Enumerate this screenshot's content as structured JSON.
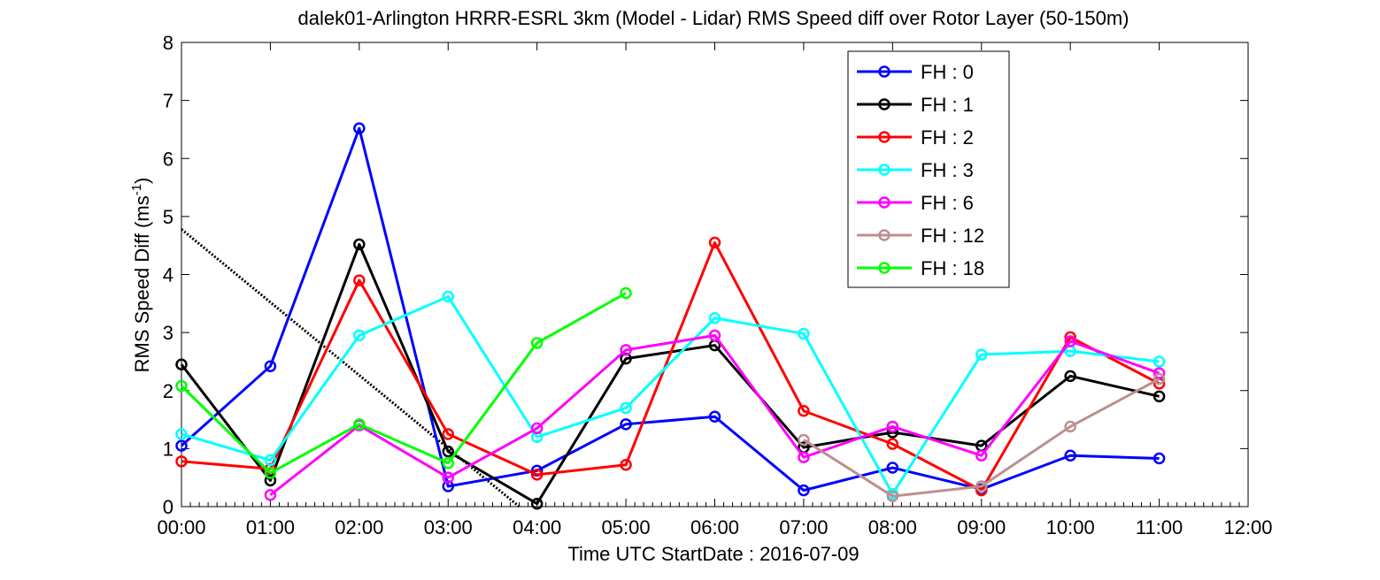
{
  "chart_data": {
    "type": "line",
    "title": "dalek01-Arlington HRRR-ESRL 3km (Model - Lidar) RMS Speed diff over Rotor Layer (50-150m)",
    "xlabel": "Time UTC    StartDate : 2016-07-09",
    "ylabel_main": "RMS Speed Diff (ms",
    "ylabel_sup": "-1",
    "ylabel_close": ")",
    "x_ticks": [
      "00:00",
      "01:00",
      "02:00",
      "03:00",
      "04:00",
      "05:00",
      "06:00",
      "07:00",
      "08:00",
      "09:00",
      "10:00",
      "11:00",
      "12:00"
    ],
    "y_ticks": [
      "0",
      "1",
      "2",
      "3",
      "4",
      "5",
      "6",
      "7",
      "8"
    ],
    "xlim_hours": [
      0,
      12
    ],
    "ylim": [
      0,
      8
    ],
    "legend_position": "top-right",
    "series": [
      {
        "name": "FH : 0",
        "color": "#0000ff",
        "points": [
          [
            0,
            1.05
          ],
          [
            1,
            2.42
          ],
          [
            2,
            6.52
          ],
          [
            3,
            0.35
          ],
          [
            4,
            0.62
          ],
          [
            5,
            1.42
          ],
          [
            6,
            1.55
          ],
          [
            7,
            0.28
          ],
          [
            8,
            0.67
          ],
          [
            9,
            0.3
          ],
          [
            10,
            0.88
          ],
          [
            11,
            0.83
          ]
        ]
      },
      {
        "name": "FH : 1",
        "color": "#000000",
        "points": [
          [
            0,
            2.45
          ],
          [
            1,
            0.45
          ],
          [
            2,
            4.52
          ],
          [
            3,
            0.95
          ],
          [
            4,
            0.05
          ],
          [
            5,
            2.55
          ],
          [
            6,
            2.78
          ],
          [
            7,
            1.02
          ],
          [
            8,
            1.28
          ],
          [
            9,
            1.05
          ],
          [
            10,
            2.25
          ],
          [
            11,
            1.9
          ]
        ]
      },
      {
        "name": "FH : 2",
        "color": "#ff0000",
        "points": [
          [
            0,
            0.78
          ],
          [
            1,
            0.65
          ],
          [
            2,
            3.9
          ],
          [
            3,
            1.25
          ],
          [
            4,
            0.55
          ],
          [
            5,
            0.72
          ],
          [
            6,
            4.55
          ],
          [
            7,
            1.65
          ],
          [
            8,
            1.08
          ],
          [
            9,
            0.28
          ],
          [
            10,
            2.92
          ],
          [
            11,
            2.12
          ]
        ]
      },
      {
        "name": "FH : 3",
        "color": "#00ffff",
        "points": [
          [
            0,
            1.25
          ],
          [
            1,
            0.8
          ],
          [
            2,
            2.95
          ],
          [
            3,
            3.62
          ],
          [
            4,
            1.2
          ],
          [
            5,
            1.7
          ],
          [
            6,
            3.25
          ],
          [
            7,
            2.98
          ],
          [
            8,
            0.22
          ],
          [
            9,
            2.62
          ],
          [
            10,
            2.68
          ],
          [
            11,
            2.5
          ]
        ]
      },
      {
        "name": "FH : 6",
        "color": "#ff00ff",
        "points": [
          [
            1,
            0.2
          ],
          [
            2,
            1.4
          ],
          [
            3,
            0.5
          ],
          [
            4,
            1.35
          ],
          [
            5,
            2.7
          ],
          [
            6,
            2.95
          ],
          [
            7,
            0.85
          ],
          [
            8,
            1.38
          ],
          [
            9,
            0.88
          ],
          [
            10,
            2.85
          ],
          [
            11,
            2.3
          ]
        ]
      },
      {
        "name": "FH : 12",
        "color": "#bc8f8f",
        "points": [
          [
            7,
            1.15
          ],
          [
            8,
            0.18
          ],
          [
            9,
            0.35
          ],
          [
            10,
            1.38
          ],
          [
            11,
            2.2
          ]
        ]
      },
      {
        "name": "FH : 18",
        "color": "#00ff00",
        "points": [
          [
            0,
            2.08
          ],
          [
            1,
            0.58
          ],
          [
            2,
            1.42
          ],
          [
            3,
            0.75
          ],
          [
            4,
            2.82
          ],
          [
            5,
            3.68
          ]
        ]
      }
    ],
    "dotted_line": [
      [
        0,
        4.78
      ],
      [
        3.8,
        0
      ]
    ],
    "dotted_color": "#000000"
  }
}
